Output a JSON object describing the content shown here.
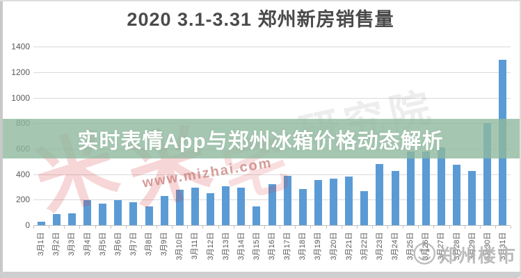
{
  "title": "2020  3.1-3.31  郑州新房销售量",
  "banner": {
    "text": "实时表情App与郑州冰箱价格动态解析",
    "bg_color": "#8fb99e"
  },
  "watermarks": {
    "logo": {
      "mi": "米",
      "zhai": "宅"
    },
    "url": "www.mizhai.com",
    "institute": "研究院",
    "brand": "郑州楼市",
    "smiley_icon": "☺"
  },
  "colors": {
    "bar": "#5b9bd5",
    "grid": "#d9d9d9",
    "axis": "#bfbfbf",
    "label": "#595959",
    "title": "#4a4a4a",
    "banner_overlay": "rgba(143,185,158,0.80)",
    "watermark_red": "rgba(215,50,55,0.20)"
  },
  "chart_data": {
    "type": "bar",
    "title": "2020 3.1-3.31 郑州新房销售量",
    "categories": [
      "3月1日",
      "3月2日",
      "3月3日",
      "3月4日",
      "3月5日",
      "3月6日",
      "3月7日",
      "3月8日",
      "3月9日",
      "3月10日",
      "3月11日",
      "3月12日",
      "3月13日",
      "3月14日",
      "3月15日",
      "3月16日",
      "3月17日",
      "3月18日",
      "3月19日",
      "3月20日",
      "3月21日",
      "3月22日",
      "3月23日",
      "3月24日",
      "3月25日",
      "3月26日",
      "3月27日",
      "3月28日",
      "3月29日",
      "3月30日",
      "3月31日"
    ],
    "values": [
      30,
      85,
      95,
      195,
      170,
      195,
      180,
      145,
      230,
      280,
      295,
      250,
      305,
      295,
      150,
      320,
      390,
      285,
      355,
      365,
      380,
      265,
      480,
      425,
      580,
      580,
      610,
      475,
      425,
      800,
      1300
    ],
    "xlabel": "",
    "ylabel": "",
    "ylim": [
      0,
      1400
    ],
    "yticks": [
      0,
      200,
      400,
      600,
      800,
      1000,
      1200,
      1400
    ],
    "grid": true,
    "legend": null,
    "bar_color": "#5b9bd5"
  }
}
